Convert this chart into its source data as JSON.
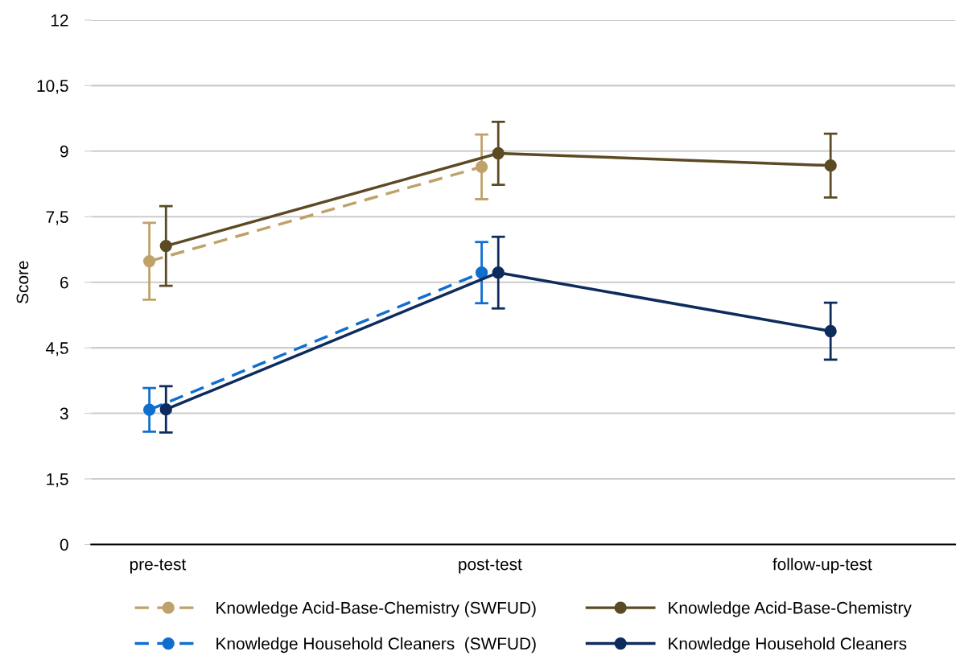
{
  "chart_data": {
    "type": "line",
    "ylabel": "Score",
    "categories": [
      "pre-test",
      "post-test",
      "follow-up-test"
    ],
    "series": [
      {
        "name": "Knowledge Acid-Base-Chemistry (SWFUD)",
        "color": "#bfa26a",
        "line_style": "dashed",
        "values": [
          6.48,
          8.64,
          null
        ],
        "errors": [
          0.88,
          0.74,
          null
        ]
      },
      {
        "name": "Knowledge Acid-Base-Chemistry",
        "color": "#5c4a24",
        "line_style": "solid",
        "values": [
          6.83,
          8.95,
          8.67
        ],
        "errors": [
          0.91,
          0.72,
          0.73
        ]
      },
      {
        "name": "Knowledge Household Cleaners  (SWFUD)",
        "color": "#0f6fcf",
        "line_style": "dashed",
        "values": [
          3.08,
          6.22,
          null
        ],
        "errors": [
          0.5,
          0.7,
          null
        ]
      },
      {
        "name": "Knowledge Household Cleaners",
        "color": "#0d2b5c",
        "line_style": "solid",
        "values": [
          3.09,
          6.22,
          4.88
        ],
        "errors": [
          0.53,
          0.82,
          0.65
        ]
      }
    ],
    "ylim": [
      0,
      12
    ],
    "yticks": [
      0,
      {
        "value": 1.5,
        "label": "1,5"
      },
      3,
      {
        "value": 4.5,
        "label": "4,5"
      },
      6,
      {
        "value": 7.5,
        "label": "7,5"
      },
      9,
      {
        "value": 10.5,
        "label": "10,5"
      },
      12
    ],
    "grid": "y",
    "legend": "bottom",
    "marker": "circle"
  }
}
